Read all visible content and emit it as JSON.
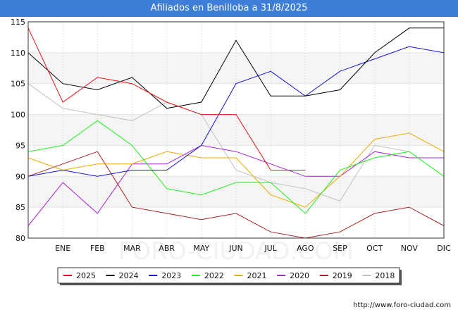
{
  "chart_data": {
    "type": "line",
    "title": "Afiliados en Benilloba a 31/8/2025",
    "categories": [
      "",
      "ENE",
      "FEB",
      "MAR",
      "ABR",
      "MAY",
      "JUN",
      "JUL",
      "AGO",
      "SEP",
      "OCT",
      "NOV",
      "DIC"
    ],
    "ylim": [
      80,
      115
    ],
    "yticks": [
      80,
      85,
      90,
      95,
      100,
      105,
      110,
      115
    ],
    "grid": true,
    "legend_position": "bottom",
    "series": [
      {
        "name": "2025",
        "color": "#ee1111",
        "values": [
          114,
          102,
          106,
          105,
          102,
          100,
          100,
          91,
          91,
          null,
          null,
          null,
          null
        ]
      },
      {
        "name": "2024",
        "color": "#000000",
        "values": [
          110,
          105,
          104,
          106,
          101,
          102,
          112,
          103,
          103,
          104,
          110,
          114,
          114
        ]
      },
      {
        "name": "2023",
        "color": "#1111dd",
        "values": [
          90,
          91,
          90,
          91,
          91,
          95,
          105,
          107,
          103,
          107,
          109,
          111,
          110
        ]
      },
      {
        "name": "2022",
        "color": "#22ee22",
        "values": [
          94,
          95,
          99,
          95,
          88,
          87,
          89,
          89,
          84,
          91,
          93,
          94,
          90
        ]
      },
      {
        "name": "2021",
        "color": "#f0a800",
        "values": [
          93,
          91,
          92,
          92,
          94,
          93,
          93,
          87,
          85,
          90,
          96,
          97,
          94
        ]
      },
      {
        "name": "2020",
        "color": "#aa22dd",
        "values": [
          82,
          89,
          84,
          92,
          92,
          95,
          94,
          92,
          90,
          90,
          94,
          93,
          93
        ]
      },
      {
        "name": "2019",
        "color": "#aa2222",
        "values": [
          90,
          92,
          94,
          85,
          84,
          83,
          84,
          81,
          80,
          81,
          84,
          85,
          82
        ]
      },
      {
        "name": "2018",
        "color": "#c0c0c0",
        "values": [
          105,
          101,
          100,
          99,
          102,
          100,
          91,
          89,
          88,
          86,
          95,
          94,
          null
        ]
      }
    ]
  },
  "watermark": "FORO-CIUDAD.COM",
  "source_url": "http://www.foro-ciudad.com"
}
